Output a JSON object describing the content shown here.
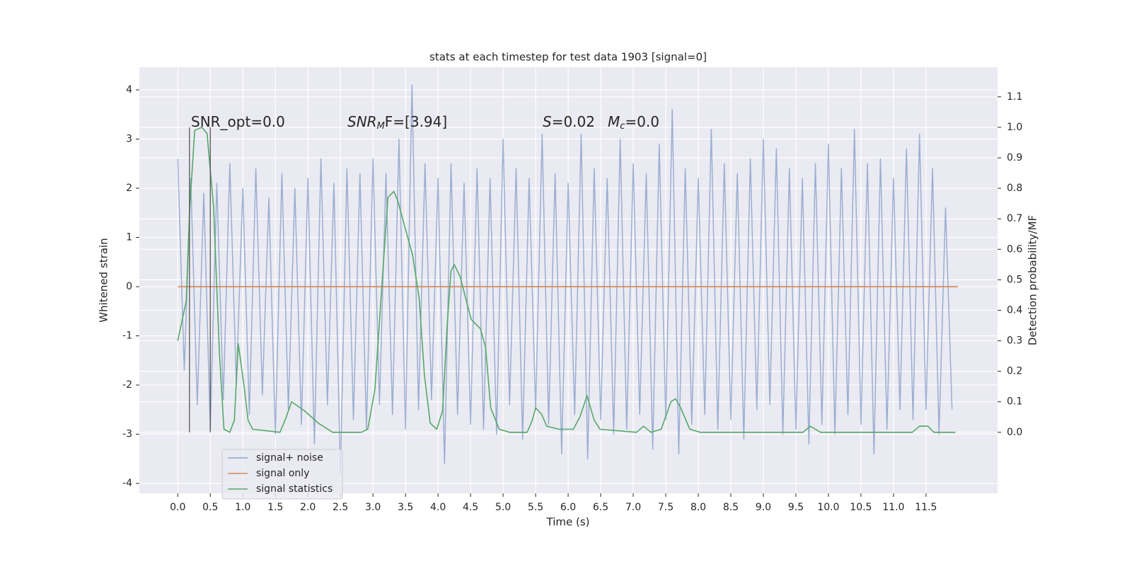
{
  "chart_data": {
    "type": "line",
    "title": "stats at each timestep for test data 1903 [signal=0]",
    "xlabel": "Time (s)",
    "ylabel": "Whitened strain",
    "y2label": "Detection probability/MF",
    "xlim": [
      -0.59,
      12.6
    ],
    "ylim": [
      -4.2,
      4.46
    ],
    "y2lim": [
      -0.2,
      1.197
    ],
    "grid": true,
    "xticks": [
      {
        "value": 0,
        "label": "0.0"
      },
      0.5,
      {
        "value": 1,
        "label": "1.0"
      },
      1.5,
      {
        "value": 2,
        "label": "2.0"
      },
      2.5,
      {
        "value": 3,
        "label": "3.0"
      },
      3.5,
      {
        "value": 4,
        "label": "4.0"
      },
      4.5,
      {
        "value": 5,
        "label": "5.0"
      },
      5.5,
      {
        "value": 6,
        "label": "6.0"
      },
      6.5,
      {
        "value": 7,
        "label": "7.0"
      },
      7.5,
      {
        "value": 8,
        "label": "8.0"
      },
      8.5,
      {
        "value": 9,
        "label": "9.0"
      },
      9.5,
      {
        "value": 10,
        "label": "10.0"
      },
      10.5,
      {
        "value": 11,
        "label": "11.0"
      },
      11.5
    ],
    "yticks": [
      -4,
      -3,
      -2,
      -1,
      0,
      1,
      2,
      3,
      4
    ],
    "y2ticks": [
      {
        "value": 0,
        "label": "0.0"
      },
      0.1,
      0.2,
      0.3,
      0.4,
      0.5,
      0.6,
      0.7,
      0.8,
      0.9,
      {
        "value": 1,
        "label": "1.0"
      },
      1.1
    ],
    "legend": "lower left",
    "series": [
      {
        "name": "signal+ noise",
        "color": "#4c72b0",
        "x": [
          0,
          0.1,
          0.2,
          0.3,
          0.4,
          0.5,
          0.6,
          0.7,
          0.8,
          0.9,
          1,
          1.1,
          1.2,
          1.3,
          1.4,
          1.5,
          1.6,
          1.7,
          1.8,
          1.9,
          2,
          2.1,
          2.2,
          2.3,
          2.4,
          2.5,
          2.6,
          2.7,
          2.8,
          2.9,
          3,
          3.1,
          3.2,
          3.3,
          3.4,
          3.5,
          3.6,
          3.7,
          3.8,
          3.9,
          4,
          4.1,
          4.2,
          4.3,
          4.4,
          4.5,
          4.6,
          4.7,
          4.8,
          4.9,
          5,
          5.1,
          5.2,
          5.3,
          5.4,
          5.5,
          5.6,
          5.7,
          5.8,
          5.9,
          6,
          6.1,
          6.2,
          6.3,
          6.4,
          6.5,
          6.6,
          6.7,
          6.8,
          6.9,
          7,
          7.1,
          7.2,
          7.3,
          7.4,
          7.5,
          7.6,
          7.7,
          7.8,
          7.9,
          8,
          8.1,
          8.2,
          8.3,
          8.4,
          8.5,
          8.6,
          8.7,
          8.8,
          8.9,
          9,
          9.1,
          9.2,
          9.3,
          9.4,
          9.5,
          9.6,
          9.7,
          9.8,
          9.9,
          10,
          10.1,
          10.2,
          10.3,
          10.4,
          10.5,
          10.6,
          10.7,
          10.8,
          10.9,
          11,
          11.1,
          11.2,
          11.3,
          11.4,
          11.5,
          11.6,
          11.7,
          11.8,
          11.9
        ],
        "values": [
          2.6,
          -1.7,
          2.2,
          -2.4,
          1.9,
          -2.9,
          2.1,
          -2.3,
          2.5,
          -2.0,
          2.0,
          -2.6,
          2.4,
          -2.2,
          1.8,
          -3.0,
          2.3,
          -2.5,
          2.0,
          -2.8,
          2.2,
          -3.2,
          2.6,
          -2.4,
          2.1,
          -3.8,
          2.4,
          -2.7,
          2.3,
          -2.9,
          2.6,
          -2.4,
          2.3,
          -2.6,
          3.0,
          -2.9,
          4.1,
          -2.5,
          2.5,
          -2.3,
          2.2,
          -3.6,
          2.5,
          -2.6,
          2.1,
          -2.8,
          2.4,
          -2.9,
          2.2,
          -3.0,
          3.0,
          -2.4,
          2.4,
          -3.1,
          2.2,
          -2.5,
          3.1,
          -2.8,
          2.3,
          -3.4,
          2.1,
          -2.6,
          3.1,
          -3.5,
          2.4,
          -2.7,
          2.2,
          -3.0,
          3.0,
          -2.9,
          2.5,
          -2.6,
          2.3,
          -3.3,
          2.9,
          -2.7,
          3.6,
          -3.4,
          2.4,
          -2.8,
          2.2,
          -2.6,
          3.2,
          -2.9,
          2.5,
          -2.7,
          2.3,
          -3.1,
          2.6,
          -2.5,
          3.0,
          -2.4,
          2.8,
          -3.0,
          2.4,
          -2.9,
          2.2,
          -3.2,
          2.5,
          -2.8,
          2.9,
          -3.0,
          2.4,
          -2.6,
          3.2,
          -2.8,
          2.5,
          -3.4,
          2.6,
          -2.9,
          2.2,
          -2.5,
          2.8,
          -2.7,
          3.1,
          -2.5,
          2.4,
          -3.0,
          1.6,
          -2.5
        ]
      },
      {
        "name": "signal only",
        "color": "#dd8452",
        "x": [
          0,
          11.99
        ],
        "values": [
          0,
          0
        ]
      },
      {
        "name": "signal statistics",
        "color": "#55a868",
        "axis": "y2",
        "x": [
          0,
          0.13,
          0.18,
          0.26,
          0.37,
          0.45,
          0.55,
          0.64,
          0.71,
          0.8,
          0.87,
          0.93,
          1.02,
          1.08,
          1.15,
          1.57,
          1.65,
          1.75,
          1.95,
          2.16,
          2.38,
          2.82,
          2.92,
          3.03,
          3.14,
          3.23,
          3.32,
          3.38,
          3.52,
          3.61,
          3.71,
          3.79,
          3.88,
          3.98,
          4.07,
          4.14,
          4.2,
          4.25,
          4.34,
          4.51,
          4.65,
          4.73,
          4.81,
          4.94,
          5.1,
          5.37,
          5.45,
          5.5,
          5.59,
          5.67,
          5.86,
          6.08,
          6.18,
          6.29,
          6.4,
          6.49,
          7.05,
          7.16,
          7.27,
          7.43,
          7.58,
          7.65,
          7.73,
          7.87,
          8.03,
          9.61,
          9.72,
          9.88,
          10.42,
          10.53,
          10.75,
          11.29,
          11.4,
          11.53,
          11.62,
          11.95
        ],
        "values": [
          0.3,
          0.43,
          0.72,
          0.99,
          1.0,
          0.98,
          0.74,
          0.26,
          0.01,
          0.0,
          0.04,
          0.29,
          0.15,
          0.04,
          0.01,
          0.0,
          0.04,
          0.1,
          0.07,
          0.03,
          0.0,
          0.0,
          0.01,
          0.14,
          0.49,
          0.77,
          0.79,
          0.76,
          0.65,
          0.58,
          0.44,
          0.19,
          0.03,
          0.01,
          0.07,
          0.35,
          0.53,
          0.55,
          0.51,
          0.37,
          0.34,
          0.28,
          0.08,
          0.01,
          0.0,
          0.0,
          0.04,
          0.08,
          0.06,
          0.02,
          0.01,
          0.01,
          0.05,
          0.12,
          0.04,
          0.01,
          0.0,
          0.02,
          0.0,
          0.01,
          0.1,
          0.11,
          0.08,
          0.01,
          0.0,
          0.0,
          0.02,
          0.0,
          0.0,
          0.0,
          0.0,
          0.0,
          0.02,
          0.02,
          0.0,
          0.0
        ]
      }
    ],
    "vlines": {
      "x": [
        0.18,
        0.5
      ],
      "color": "#555555"
    },
    "annotations": [
      {
        "text": "SNR_opt=0.0"
      },
      {
        "text": "SNR",
        "sub": "M",
        "tail": "F=[3.94]"
      },
      {
        "text": "S",
        "tail": "=0.02"
      },
      {
        "text": "M",
        "sub": "c",
        "tail": "=0.0"
      }
    ]
  }
}
